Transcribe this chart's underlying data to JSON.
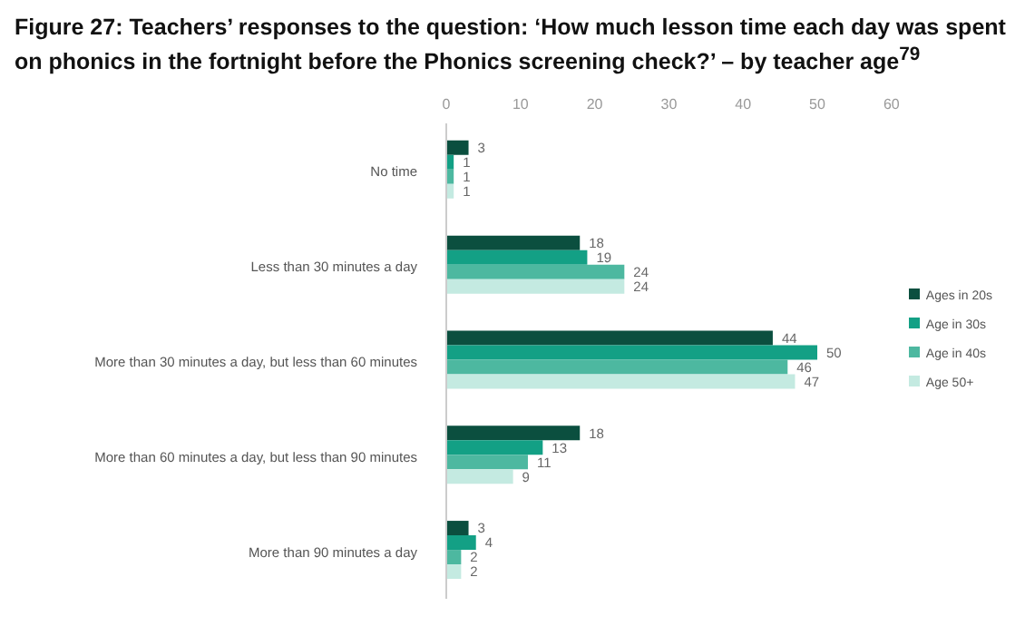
{
  "chart_data": {
    "type": "bar",
    "orientation": "horizontal",
    "title": "Figure 27: Teachers’ responses to the question: ‘How much lesson time each day was spent on phonics in the fortnight before the Phonics screening check?’ – by teacher age$^{79}$",
    "categories": [
      "No time",
      "Less than 30 minutes a day",
      "More than 30 minutes a day, but less than 60 minutes",
      "More than 60 minutes a day, but less than 90 minutes",
      "More than 90 minutes a day"
    ],
    "series": [
      {
        "name": "Ages in 20s",
        "color": "#0b4f3f",
        "values": [
          3,
          18,
          44,
          18,
          3
        ]
      },
      {
        "name": "Age in 30s",
        "color": "#13a085",
        "values": [
          1,
          19,
          50,
          13,
          4
        ]
      },
      {
        "name": "Age in 40s",
        "color": "#4db8a0",
        "values": [
          1,
          24,
          46,
          11,
          2
        ]
      },
      {
        "name": "Age 50+",
        "color": "#c4eae1",
        "values": [
          1,
          24,
          47,
          9,
          2
        ]
      }
    ],
    "xlim": [
      0,
      60
    ],
    "xticks": [
      0,
      10,
      20,
      30,
      40,
      50,
      60
    ],
    "data_labels": true,
    "grid": false,
    "legend": "right"
  }
}
